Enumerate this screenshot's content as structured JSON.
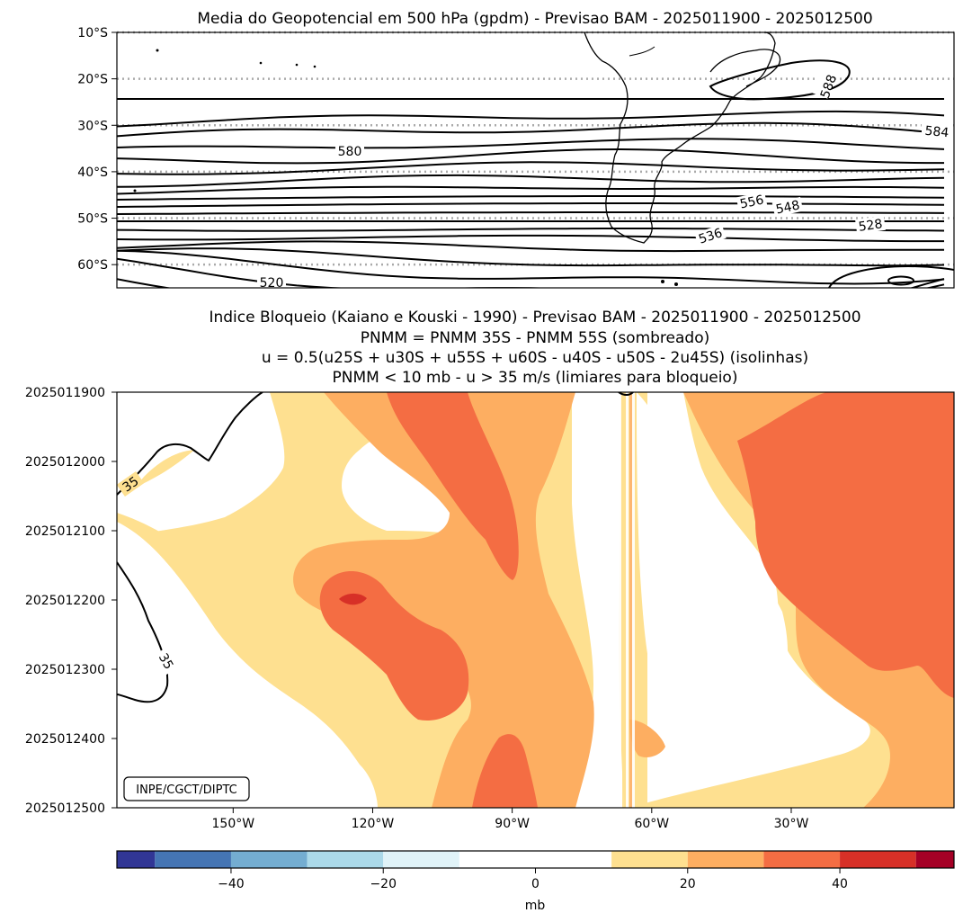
{
  "chart_data": [
    {
      "type": "contour-map",
      "title": "Media do Geopotencial em 500 hPa (gpdm) - Previsao BAM - 2025011900 - 2025012500",
      "y_tick_labels": [
        "10°S",
        "20°S",
        "30°S",
        "40°S",
        "50°S",
        "60°S"
      ],
      "latitudes": [
        -10,
        -20,
        -30,
        -40,
        -50,
        -60
      ],
      "lat_range": [
        -65,
        -10
      ],
      "gridlines": "dotted",
      "contour_labels": [
        {
          "text": "588"
        },
        {
          "text": "584"
        },
        {
          "text": "580"
        },
        {
          "text": "556"
        },
        {
          "text": "548"
        },
        {
          "text": "536"
        },
        {
          "text": "528"
        },
        {
          "text": "520"
        }
      ]
    },
    {
      "type": "hovmoller",
      "title_lines": [
        "Indice Bloqueio (Kaiano e Kouski - 1990) - Previsao BAM - 2025011900 - 2025012500",
        "PNMM = PNMM 35S - PNMM 55S (sombreado)",
        "u = 0.5(u25S + u30S + u55S + u60S - u40S - u50S - 2u45S) (isolinhas)",
        "PNMM < 10 mb - u > 35 m/s (limiares para bloqueio)"
      ],
      "y_tick_labels": [
        "2025011900",
        "2025012000",
        "2025012100",
        "2025012200",
        "2025012300",
        "2025012400",
        "2025012500"
      ],
      "x_tick_labels": [
        "150°W",
        "120°W",
        "90°W",
        "60°W",
        "30°W"
      ],
      "x_values": [
        -150,
        -120,
        -90,
        -60,
        -30
      ],
      "x_range": [
        -175,
        5
      ],
      "isoline_label": "35",
      "isoline_labels": [
        {
          "text": "35"
        },
        {
          "text": "35"
        }
      ],
      "credit": "INPE/CGCT/DIPTC"
    },
    {
      "type": "colorbar",
      "levels": [
        -55,
        -50,
        -40,
        -30,
        -20,
        -10,
        10,
        20,
        30,
        40,
        50,
        55
      ],
      "colors": [
        "#313695",
        "#4575b4",
        "#74add1",
        "#abd9e9",
        "#e0f3f8",
        "#ffffff",
        "#fee090",
        "#fdae61",
        "#f46d43",
        "#d73027",
        "#a50026"
      ],
      "tick_values": [
        -40,
        -20,
        0,
        20,
        40
      ],
      "tick_labels": [
        "−40",
        "−20",
        "0",
        "20",
        "40"
      ],
      "label": "mb"
    }
  ]
}
